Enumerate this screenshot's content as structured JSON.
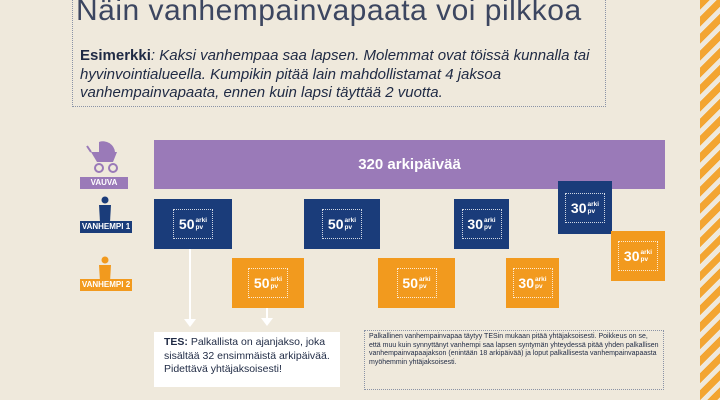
{
  "title": "Näin vanhempainvapaata voi pilkkoa",
  "example": {
    "label": "Esimerkki",
    "text": ": Kaksi vanhempaa saa lapsen. Molemmat ovat töissä kunnalla tai hyvinvointialueella. Kumpikin pitää lain mahdollistamat 4 jaksoa vanhempainvapaata, ennen kuin lapsi täyttää 2 vuotta."
  },
  "rows": {
    "baby": {
      "label": "VAUVA",
      "icon": "stroller-icon"
    },
    "parent1": {
      "label": "VANHEMPI 1",
      "icon": "person-icon"
    },
    "parent2": {
      "label": "VANHEMPI 2",
      "icon": "person-icon"
    }
  },
  "band": {
    "text": "320 arkipäivää"
  },
  "unit": {
    "line1": "arki",
    "line2": "pv"
  },
  "parent1_blocks": [
    {
      "value": "50"
    },
    {
      "value": "50"
    },
    {
      "value": "30"
    },
    {
      "value": "30"
    }
  ],
  "parent2_blocks": [
    {
      "value": "50"
    },
    {
      "value": "50"
    },
    {
      "value": "30"
    },
    {
      "value": "30"
    }
  ],
  "tes": {
    "label": "TES:",
    "text": " Palkallista on ajanjakso, joka sisältää 32 ensimmäistä arkipäivää. Pidettävä yhtäjaksoisesti!"
  },
  "note": "Palkallinen vanhempainvapaa täytyy TESin mukaan pitää yhtäjaksoisesti. Poikkeus on se, että muu kuin synnyttänyt vanhempi saa lapsen syntymän yhteydessä pitää yhden palkallisen vanhempainvapaajakson (enintään 18 arkipäivää) ja loput palkallisesta vanhempainvapaasta myöhemmin yhtäjaksoisesti.",
  "colors": {
    "background": "#efe9dc",
    "purple": "#9a7ab8",
    "blue": "#1a3c7a",
    "orange": "#f29a1e",
    "stripe": "#f3a531"
  }
}
